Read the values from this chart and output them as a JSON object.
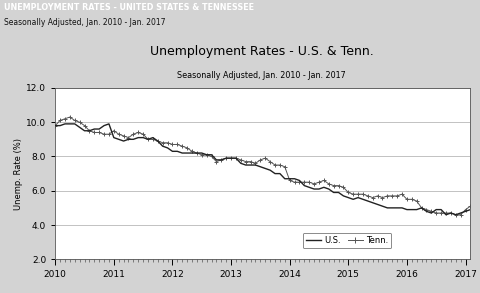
{
  "title": "Unemployment Rates - U.S. & Tenn.",
  "subtitle": "Seasonally Adjusted, Jan. 2010 - Jan. 2017",
  "header_text": "UNEMPLOYMENT RATES - UNITED STATES & TENNESSEE",
  "header_sub": "Seasonally Adjusted, Jan. 2010 - Jan. 2017",
  "ylabel": "Unemp. Rate (%)",
  "ylim": [
    2.0,
    12.0
  ],
  "yticks": [
    2.0,
    4.0,
    6.0,
    8.0,
    10.0,
    12.0
  ],
  "xlim_start": 2010.0,
  "xlim_end": 2017.083,
  "xticks": [
    2010,
    2011,
    2012,
    2013,
    2014,
    2015,
    2016,
    2017
  ],
  "header_bg": "#cc0000",
  "header_fg": "#ffffff",
  "subheader_bg": "#d3d3d3",
  "plot_bg": "#e8e8e8",
  "inner_bg": "#ffffff",
  "us_color": "#222222",
  "tenn_color": "#555555",
  "us_data": [
    9.8,
    9.8,
    9.9,
    9.9,
    9.9,
    9.7,
    9.5,
    9.5,
    9.6,
    9.6,
    9.8,
    9.9,
    9.1,
    9.0,
    8.9,
    9.0,
    9.0,
    9.1,
    9.1,
    9.0,
    9.1,
    8.9,
    8.6,
    8.5,
    8.3,
    8.3,
    8.2,
    8.2,
    8.2,
    8.2,
    8.2,
    8.1,
    8.1,
    7.8,
    7.8,
    7.9,
    7.9,
    7.9,
    7.6,
    7.5,
    7.5,
    7.5,
    7.4,
    7.3,
    7.2,
    7.0,
    7.0,
    6.7,
    6.7,
    6.7,
    6.6,
    6.3,
    6.2,
    6.1,
    6.1,
    6.2,
    6.1,
    5.9,
    5.9,
    5.7,
    5.6,
    5.5,
    5.6,
    5.5,
    5.4,
    5.3,
    5.2,
    5.1,
    5.0,
    5.0,
    5.0,
    5.0,
    4.9,
    4.9,
    4.9,
    5.0,
    4.8,
    4.7,
    4.9,
    4.9,
    4.6,
    4.7,
    4.6,
    4.7,
    4.8,
    4.9,
    4.6
  ],
  "tenn_data": [
    9.8,
    10.1,
    10.2,
    10.3,
    10.1,
    10.0,
    9.8,
    9.5,
    9.4,
    9.4,
    9.3,
    9.3,
    9.5,
    9.3,
    9.2,
    9.1,
    9.3,
    9.4,
    9.3,
    9.0,
    9.0,
    8.9,
    8.8,
    8.8,
    8.7,
    8.7,
    8.6,
    8.5,
    8.3,
    8.2,
    8.1,
    8.1,
    8.0,
    7.7,
    7.8,
    7.9,
    7.9,
    7.9,
    7.8,
    7.7,
    7.7,
    7.6,
    7.8,
    7.9,
    7.7,
    7.5,
    7.5,
    7.4,
    6.6,
    6.5,
    6.5,
    6.5,
    6.5,
    6.4,
    6.5,
    6.6,
    6.4,
    6.3,
    6.3,
    6.2,
    5.9,
    5.8,
    5.8,
    5.8,
    5.7,
    5.6,
    5.7,
    5.6,
    5.7,
    5.7,
    5.7,
    5.8,
    5.5,
    5.5,
    5.4,
    5.0,
    4.9,
    4.8,
    4.7,
    4.7,
    4.7,
    4.7,
    4.6,
    4.6,
    4.9,
    5.1,
    5.3
  ]
}
